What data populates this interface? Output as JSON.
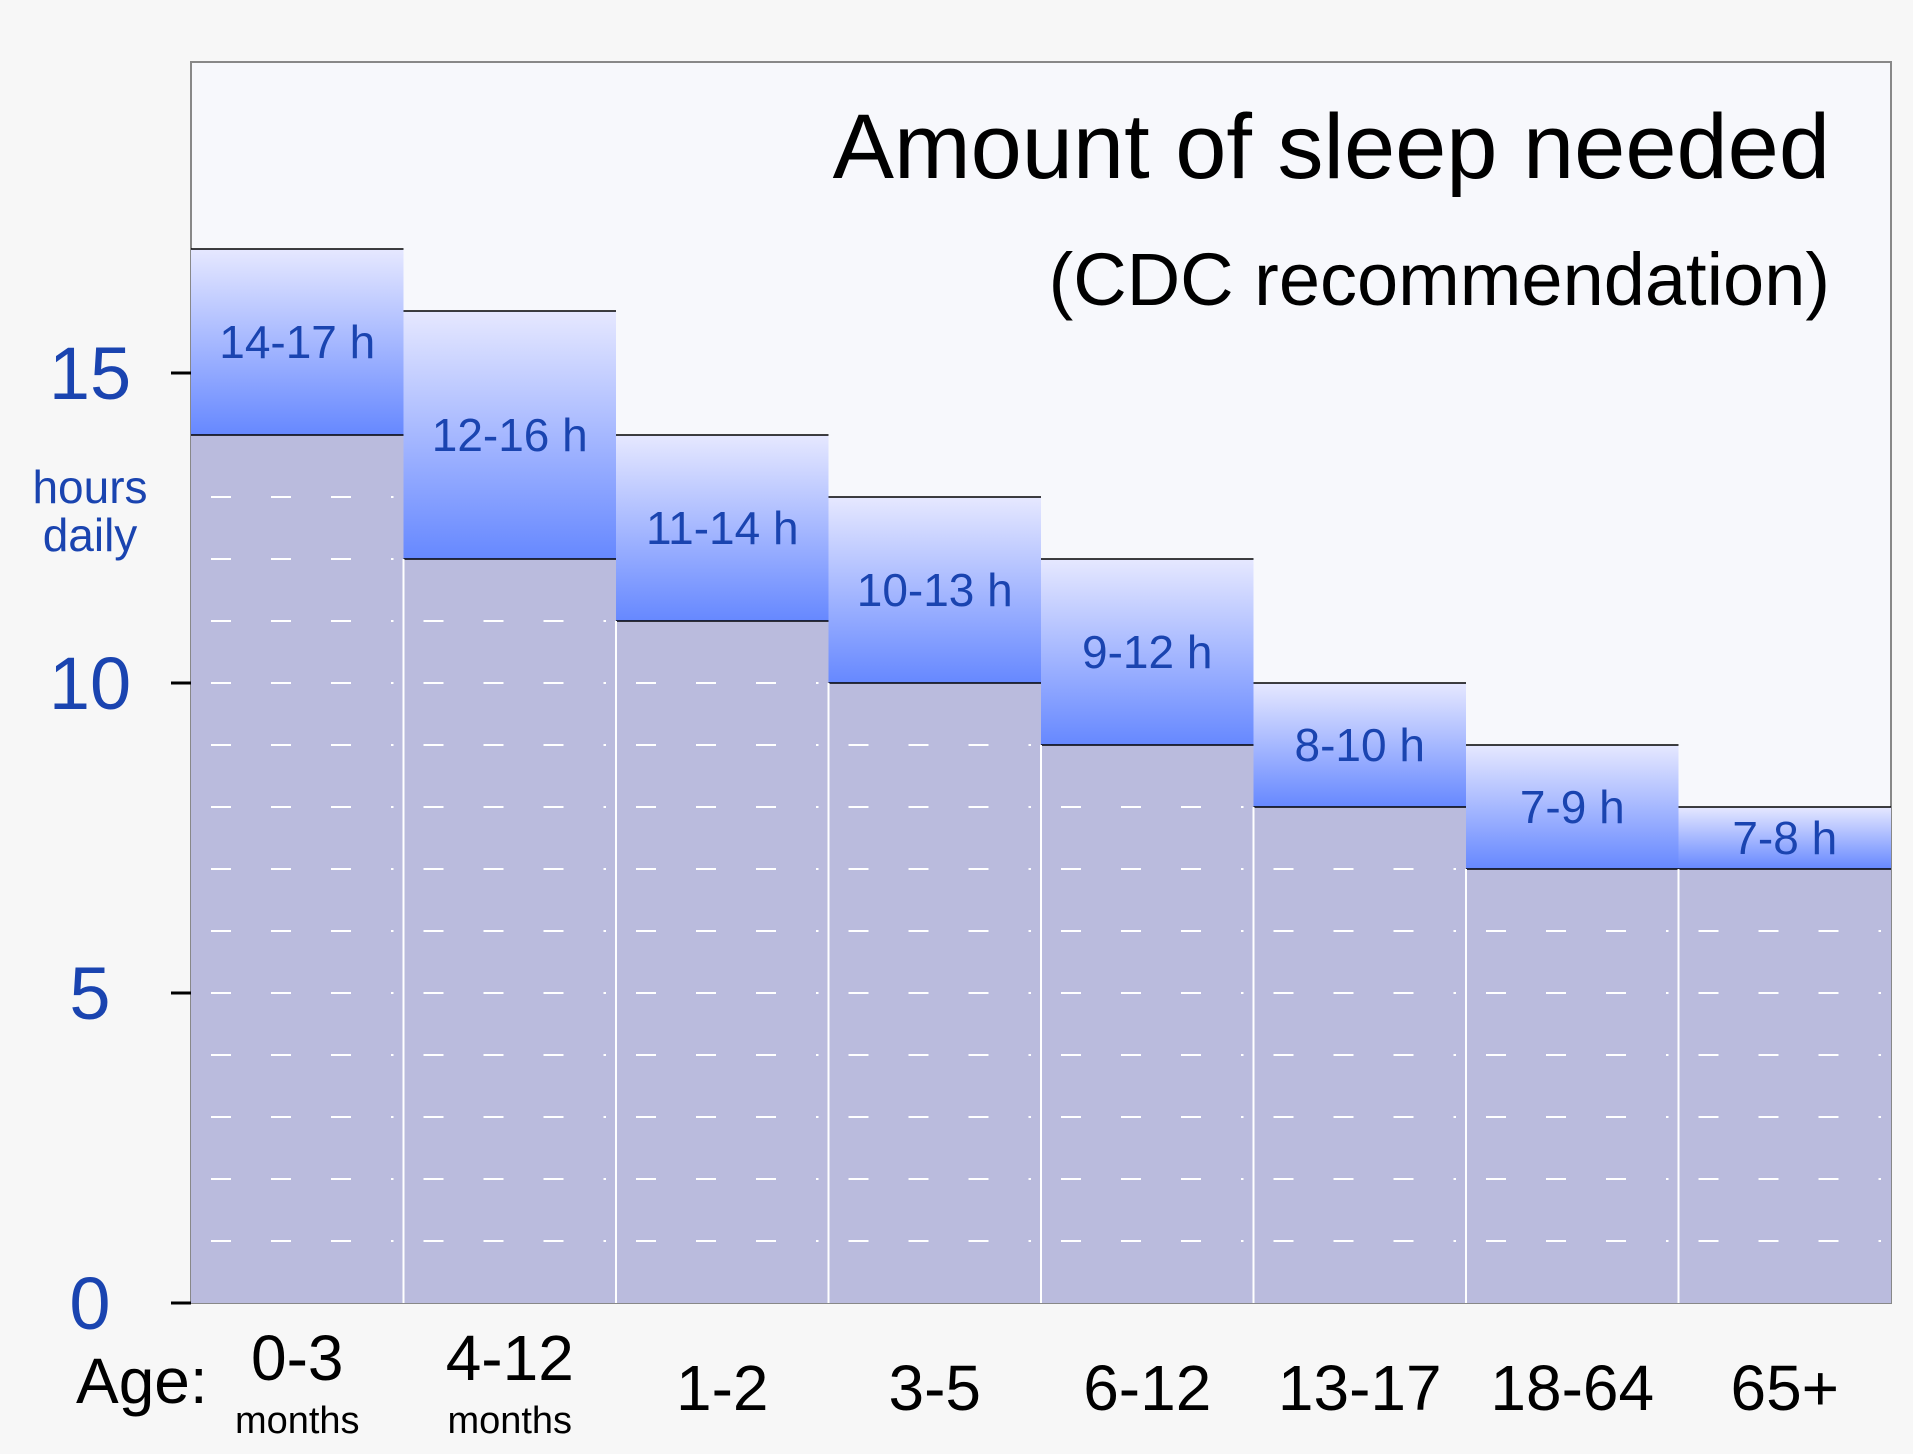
{
  "chart_data": {
    "type": "bar",
    "title": "Amount of sleep needed",
    "subtitle": "(CDC recommendation)",
    "ylabel": [
      "hours",
      "daily"
    ],
    "xlabel": "Age:",
    "ylim": [
      0,
      20
    ],
    "yticks": [
      "0",
      "5",
      "10",
      "15"
    ],
    "categories": [
      {
        "label": "0-3",
        "sub": "months"
      },
      {
        "label": "4-12",
        "sub": "months"
      },
      {
        "label": "1-2",
        "sub": ""
      },
      {
        "label": "3-5",
        "sub": ""
      },
      {
        "label": "6-12",
        "sub": ""
      },
      {
        "label": "13-17",
        "sub": ""
      },
      {
        "label": "18-64",
        "sub": ""
      },
      {
        "label": "65+",
        "sub": ""
      }
    ],
    "series": [
      {
        "min": 14,
        "max": 17,
        "label": "14-17 h"
      },
      {
        "min": 12,
        "max": 16,
        "label": "12-16 h"
      },
      {
        "min": 11,
        "max": 14,
        "label": "11-14 h"
      },
      {
        "min": 10,
        "max": 13,
        "label": "10-13 h"
      },
      {
        "min": 9,
        "max": 12,
        "label": "9-12 h"
      },
      {
        "min": 8,
        "max": 10,
        "label": "8-10 h"
      },
      {
        "min": 7,
        "max": 9,
        "label": "7-9 h"
      },
      {
        "min": 7,
        "max": 8,
        "label": "7-8 h"
      }
    ],
    "gridlines": "dashed",
    "colors": {
      "base": "#babbdd",
      "range_top": "#e6e8ff",
      "range_bottom": "#6688ff",
      "plot_bg": "#f7f8fc",
      "axis_text": "#1a44b0"
    }
  }
}
